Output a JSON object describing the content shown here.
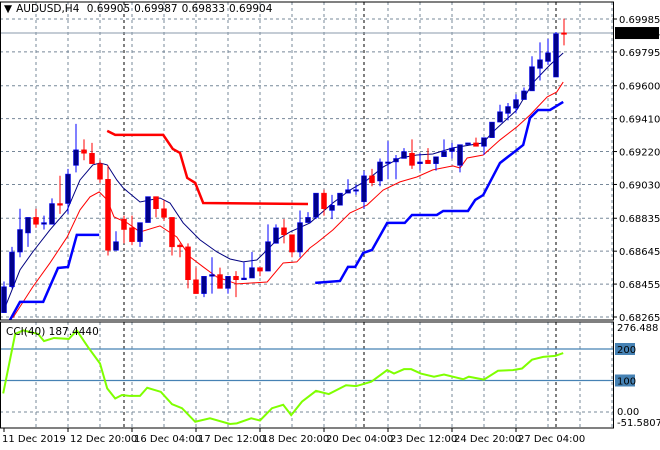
{
  "header": {
    "menu_icon": "triangle-down-icon",
    "symbol": "AUDUSD,H4",
    "open": "0.69905",
    "high": "0.69987",
    "low": "0.69833",
    "close": "0.69904"
  },
  "colors": {
    "bull": "#00008b",
    "bear": "#ff0000",
    "doji": "#00c800",
    "ma_fast": "#000080",
    "ma_slow": "#ff0000",
    "upper_stop": "#ff0000",
    "lower_stop": "#0000ff",
    "cci": "#7fff00",
    "grid": "#778899",
    "cci_level": "#4682b4"
  },
  "chart_data": [
    {
      "type": "candlestick",
      "title": "AUDUSD,H4",
      "ylim": [
        0.68265,
        0.69985
      ],
      "price_ticks": [
        "0.69985",
        "0.69795",
        "0.69600",
        "0.69410",
        "0.69220",
        "0.69030",
        "0.68835",
        "0.68645",
        "0.68455",
        "0.68265"
      ],
      "current_price": "0.69904",
      "time_labels": [
        {
          "bar": 1,
          "label": "11 Dec 2019"
        },
        {
          "bar": 9,
          "label": "12 Dec 20:00"
        },
        {
          "bar": 17,
          "label": "16 Dec 04:00"
        },
        {
          "bar": 25,
          "label": "17 Dec 12:00"
        },
        {
          "bar": 33,
          "label": "18 Dec 20:00"
        },
        {
          "bar": 41,
          "label": "20 Dec 04:00"
        },
        {
          "bar": 49,
          "label": "23 Dec 12:00"
        },
        {
          "bar": 57,
          "label": "24 Dec 20:00"
        },
        {
          "bar": 65,
          "label": "27 Dec 04:00"
        }
      ],
      "separator_bars": [
        16,
        46,
        70
      ],
      "candles_ohlc": [
        [
          0.6829,
          0.6847,
          0.6829,
          0.6844
        ],
        [
          0.6844,
          0.6867,
          0.6843,
          0.6864
        ],
        [
          0.6864,
          0.6889,
          0.6861,
          0.6877
        ],
        [
          0.6875,
          0.6884,
          0.6867,
          0.6884
        ],
        [
          0.6884,
          0.6889,
          0.6878,
          0.688
        ],
        [
          0.688,
          0.6885,
          0.6877,
          0.6881
        ],
        [
          0.688,
          0.6895,
          0.688,
          0.6892
        ],
        [
          0.6892,
          0.6908,
          0.6886,
          0.6891
        ],
        [
          0.6892,
          0.6912,
          0.6886,
          0.6909
        ],
        [
          0.6914,
          0.6938,
          0.691,
          0.6923
        ],
        [
          0.6923,
          0.6929,
          0.6917,
          0.6921
        ],
        [
          0.6921,
          0.6927,
          0.6915,
          0.6915
        ],
        [
          0.6915,
          0.6917,
          0.6904,
          0.6906
        ],
        [
          0.6906,
          0.6914,
          0.6862,
          0.6865
        ],
        [
          0.6865,
          0.6876,
          0.6865,
          0.687
        ],
        [
          0.6883,
          0.6885,
          0.6869,
          0.6877
        ],
        [
          0.6878,
          0.6885,
          0.6868,
          0.687
        ],
        [
          0.687,
          0.6881,
          0.6867,
          0.6881
        ],
        [
          0.6881,
          0.6896,
          0.6881,
          0.6896
        ],
        [
          0.6896,
          0.6896,
          0.6884,
          0.6889
        ],
        [
          0.6889,
          0.6894,
          0.6882,
          0.6884
        ],
        [
          0.6884,
          0.6884,
          0.6862,
          0.6867
        ],
        [
          0.6868,
          0.6869,
          0.6861,
          0.6867
        ],
        [
          0.6867,
          0.6869,
          0.6843,
          0.6848
        ],
        [
          0.6848,
          0.6855,
          0.684,
          0.684
        ],
        [
          0.684,
          0.685,
          0.6838,
          0.685
        ],
        [
          0.685,
          0.6861,
          0.684,
          0.6851
        ],
        [
          0.6851,
          0.6855,
          0.6843,
          0.6843
        ],
        [
          0.6843,
          0.685,
          0.684,
          0.685
        ],
        [
          0.685,
          0.6853,
          0.6838,
          0.6848
        ],
        [
          0.6848,
          0.6858,
          0.6848,
          0.6849
        ],
        [
          0.6849,
          0.6864,
          0.6849,
          0.6855
        ],
        [
          0.6855,
          0.6855,
          0.685,
          0.6853
        ],
        [
          0.6853,
          0.688,
          0.6853,
          0.687
        ],
        [
          0.6869,
          0.688,
          0.6869,
          0.6878
        ],
        [
          0.6878,
          0.6883,
          0.6869,
          0.6874
        ],
        [
          0.6874,
          0.6874,
          0.6861,
          0.6864
        ],
        [
          0.6864,
          0.6888,
          0.6861,
          0.6881
        ],
        [
          0.6881,
          0.6887,
          0.6881,
          0.6884
        ],
        [
          0.6884,
          0.6898,
          0.6883,
          0.6898
        ],
        [
          0.6898,
          0.69,
          0.6885,
          0.6889
        ],
        [
          0.6888,
          0.6897,
          0.6883,
          0.6891
        ],
        [
          0.6891,
          0.6898,
          0.6891,
          0.6898
        ],
        [
          0.6898,
          0.6906,
          0.6898,
          0.69
        ],
        [
          0.69,
          0.6903,
          0.6897,
          0.69
        ],
        [
          0.6893,
          0.6911,
          0.6889,
          0.6908
        ],
        [
          0.6908,
          0.6912,
          0.6902,
          0.6904
        ],
        [
          0.6905,
          0.6918,
          0.6902,
          0.6916
        ],
        [
          0.6916,
          0.6928,
          0.6906,
          0.6916
        ],
        [
          0.6916,
          0.692,
          0.6906,
          0.6918
        ],
        [
          0.6918,
          0.6924,
          0.6918,
          0.6922
        ],
        [
          0.6921,
          0.6929,
          0.6912,
          0.6914
        ],
        [
          0.6915,
          0.6921,
          0.6911,
          0.6916
        ],
        [
          0.6917,
          0.6924,
          0.6915,
          0.6915
        ],
        [
          0.6915,
          0.6919,
          0.6911,
          0.6919
        ],
        [
          0.6919,
          0.6929,
          0.6919,
          0.6922
        ],
        [
          0.6922,
          0.6927,
          0.6918,
          0.6924
        ],
        [
          0.6914,
          0.6926,
          0.691,
          0.6926
        ],
        [
          0.6926,
          0.6927,
          0.6926,
          0.6927
        ],
        [
          0.6927,
          0.693,
          0.6925,
          0.6925
        ],
        [
          0.6925,
          0.693,
          0.692,
          0.693
        ],
        [
          0.693,
          0.6939,
          0.693,
          0.6939
        ],
        [
          0.6939,
          0.6949,
          0.6939,
          0.6945
        ],
        [
          0.6944,
          0.695,
          0.694,
          0.6948
        ],
        [
          0.6947,
          0.6955,
          0.6944,
          0.6952
        ],
        [
          0.6952,
          0.6959,
          0.6952,
          0.6957
        ],
        [
          0.6957,
          0.6977,
          0.6957,
          0.6971
        ],
        [
          0.697,
          0.6985,
          0.6963,
          0.6975
        ],
        [
          0.6974,
          0.6987,
          0.6972,
          0.6979
        ],
        [
          0.6965,
          0.6991,
          0.6965,
          0.699
        ],
        [
          0.69905,
          0.69987,
          0.69833,
          0.69904
        ]
      ],
      "series": [
        {
          "name": "ma_fast",
          "points": [
            [
              1,
              0.68306
            ],
            [
              3,
              0.68537
            ],
            [
              4.6,
              0.68641
            ],
            [
              6.75,
              0.68768
            ],
            [
              8.9,
              0.68883
            ],
            [
              10.5,
              0.69056
            ],
            [
              12.1,
              0.69143
            ],
            [
              13,
              0.69154
            ],
            [
              13.9,
              0.69143
            ],
            [
              15.1,
              0.69056
            ],
            [
              15.9,
              0.6901
            ],
            [
              18,
              0.68929
            ],
            [
              20.5,
              0.68952
            ],
            [
              21.75,
              0.68923
            ],
            [
              23.4,
              0.68808
            ],
            [
              25.5,
              0.6871
            ],
            [
              27.6,
              0.68641
            ],
            [
              29.25,
              0.686
            ],
            [
              30.9,
              0.68583
            ],
            [
              32.6,
              0.68594
            ],
            [
              33.9,
              0.68652
            ],
            [
              35.1,
              0.6871
            ],
            [
              36.75,
              0.68756
            ],
            [
              39.25,
              0.68808
            ],
            [
              40.1,
              0.68843
            ],
            [
              42.1,
              0.68923
            ],
            [
              44.25,
              0.68998
            ],
            [
              46.4,
              0.69056
            ],
            [
              48.4,
              0.69131
            ],
            [
              50.5,
              0.69183
            ],
            [
              52.6,
              0.692
            ],
            [
              54.6,
              0.69206
            ],
            [
              57.1,
              0.69241
            ],
            [
              60.9,
              0.6927
            ],
            [
              62.1,
              0.69333
            ],
            [
              65.1,
              0.6946
            ],
            [
              67.1,
              0.69616
            ],
            [
              69.25,
              0.6972
            ],
            [
              70.9,
              0.69789
            ]
          ]
        },
        {
          "name": "ma_slow",
          "points": [
            [
              2.1,
              0.6826
            ],
            [
              4.6,
              0.68439
            ],
            [
              6.75,
              0.68577
            ],
            [
              8.9,
              0.68727
            ],
            [
              10.5,
              0.68883
            ],
            [
              11.75,
              0.68958
            ],
            [
              12.9,
              0.68987
            ],
            [
              13.9,
              0.68941
            ],
            [
              14.75,
              0.68843
            ],
            [
              16.4,
              0.68808
            ],
            [
              18,
              0.68756
            ],
            [
              20.5,
              0.68791
            ],
            [
              22.6,
              0.68727
            ],
            [
              24.25,
              0.68612
            ],
            [
              25.9,
              0.68554
            ],
            [
              27.6,
              0.68496
            ],
            [
              30.1,
              0.68456
            ],
            [
              33.9,
              0.68467
            ],
            [
              35.9,
              0.68577
            ],
            [
              37.6,
              0.68583
            ],
            [
              39.25,
              0.68664
            ],
            [
              40.1,
              0.68693
            ],
            [
              42.1,
              0.68767
            ],
            [
              44.25,
              0.68866
            ],
            [
              46.4,
              0.68912
            ],
            [
              48.4,
              0.68998
            ],
            [
              50.5,
              0.69045
            ],
            [
              52.6,
              0.69073
            ],
            [
              54.6,
              0.69114
            ],
            [
              57.1,
              0.69137
            ],
            [
              58,
              0.69125
            ],
            [
              58.9,
              0.69183
            ],
            [
              60.9,
              0.692
            ],
            [
              63,
              0.69287
            ],
            [
              65.1,
              0.69362
            ],
            [
              66.75,
              0.69431
            ],
            [
              68.9,
              0.69535
            ],
            [
              70.1,
              0.69564
            ],
            [
              70.9,
              0.69621
            ]
          ]
        },
        {
          "name": "upper_stop",
          "points": [
            [
              13.9,
              0.69339
            ],
            [
              14.9,
              0.69316
            ],
            [
              20.9,
              0.69316
            ],
            [
              22.1,
              0.69235
            ],
            [
              23,
              0.69212
            ],
            [
              23.9,
              0.69068
            ],
            [
              24.9,
              0.69039
            ],
            [
              25.9,
              0.68923
            ],
            [
              39,
              0.68917
            ]
          ]
        },
        {
          "name": "lower_stop_a",
          "points": [
            [
              1.75,
              0.68248
            ],
            [
              3,
              0.68352
            ],
            [
              5.9,
              0.68352
            ],
            [
              7.75,
              0.68548
            ],
            [
              9,
              0.68554
            ],
            [
              10.1,
              0.68739
            ],
            [
              12.9,
              0.68739
            ]
          ]
        },
        {
          "name": "lower_stop_b",
          "points": [
            [
              39.9,
              0.68462
            ],
            [
              43,
              0.68473
            ],
            [
              44,
              0.68554
            ],
            [
              44.9,
              0.68554
            ],
            [
              45.9,
              0.68635
            ],
            [
              47,
              0.68652
            ],
            [
              48.9,
              0.68808
            ],
            [
              51.1,
              0.68808
            ],
            [
              52,
              0.68854
            ],
            [
              55.1,
              0.68854
            ],
            [
              55.9,
              0.68877
            ],
            [
              59,
              0.68877
            ],
            [
              59.9,
              0.68941
            ],
            [
              60.9,
              0.68969
            ],
            [
              63,
              0.69154
            ],
            [
              65.1,
              0.69229
            ],
            [
              65.9,
              0.69258
            ],
            [
              66.75,
              0.69414
            ],
            [
              67.75,
              0.6946
            ],
            [
              69.25,
              0.6946
            ],
            [
              70.9,
              0.69506
            ]
          ]
        }
      ]
    },
    {
      "type": "line",
      "title": "CCI(40) 187.4440",
      "label_name": "CCI(40)",
      "label_value": "187.4440",
      "ylim": [
        -51.5807,
        276.488
      ],
      "y_top_label": "276.488",
      "y_bottom_label": "-51.5807",
      "zero_label": "0.00",
      "levels": [
        "200",
        "100"
      ],
      "points": [
        [
          0.9,
          59
        ],
        [
          2.4,
          248
        ],
        [
          3.4,
          259
        ],
        [
          5.25,
          248
        ],
        [
          6,
          225
        ],
        [
          7.25,
          235
        ],
        [
          9.1,
          232
        ],
        [
          10.1,
          259
        ],
        [
          11.5,
          206
        ],
        [
          13,
          154
        ],
        [
          13.9,
          75
        ],
        [
          14.9,
          43
        ],
        [
          15.75,
          54
        ],
        [
          16.75,
          51
        ],
        [
          18,
          51
        ],
        [
          18.9,
          77
        ],
        [
          20.6,
          64
        ],
        [
          22,
          25
        ],
        [
          23.25,
          12
        ],
        [
          24.9,
          -31
        ],
        [
          26.75,
          -20
        ],
        [
          29.25,
          -38
        ],
        [
          30.1,
          -36
        ],
        [
          31.9,
          -20
        ],
        [
          33,
          -27
        ],
        [
          34.5,
          12
        ],
        [
          35.9,
          23
        ],
        [
          36.9,
          -10
        ],
        [
          38.25,
          33
        ],
        [
          40,
          67
        ],
        [
          41.6,
          57
        ],
        [
          43.75,
          85
        ],
        [
          45,
          82
        ],
        [
          46.9,
          96
        ],
        [
          48.9,
          133
        ],
        [
          49.75,
          122
        ],
        [
          51,
          136
        ],
        [
          51.9,
          136
        ],
        [
          53.1,
          122
        ],
        [
          54.75,
          112
        ],
        [
          56,
          119
        ],
        [
          58.4,
          104
        ],
        [
          59.1,
          112
        ],
        [
          61,
          103
        ],
        [
          62.75,
          131
        ],
        [
          64.6,
          133
        ],
        [
          65.75,
          138
        ],
        [
          67,
          166
        ],
        [
          68.4,
          175
        ],
        [
          69.9,
          178
        ],
        [
          70.9,
          187
        ]
      ]
    }
  ]
}
